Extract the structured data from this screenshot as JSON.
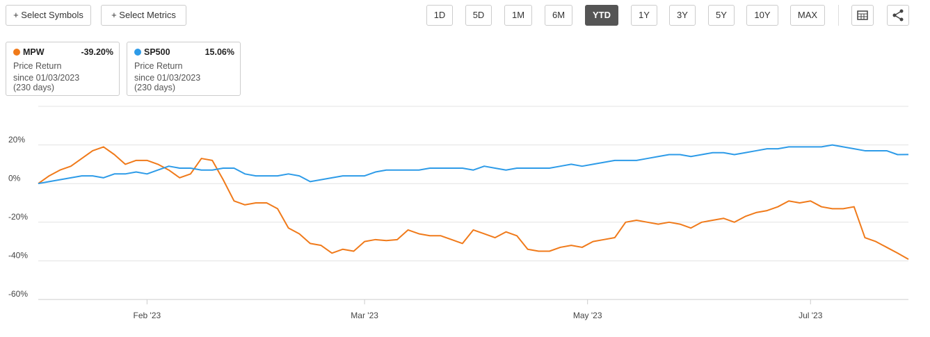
{
  "toolbar": {
    "select_symbols": "+ Select Symbols",
    "select_metrics": "+ Select Metrics",
    "ranges": [
      "1D",
      "5D",
      "1M",
      "6M",
      "YTD",
      "1Y",
      "3Y",
      "5Y",
      "10Y",
      "MAX"
    ],
    "active_range": "YTD"
  },
  "cards": [
    {
      "change": "-39.20%",
      "metric": "Price Return",
      "since": "since 01/03/2023",
      "days": "(230 days)"
    },
    {
      "change": "15.06%",
      "metric": "Price Return",
      "since": "since 01/03/2023",
      "days": "(230 days)"
    }
  ],
  "chart_data": {
    "type": "line",
    "x": [
      0,
      2,
      4,
      6,
      8,
      10,
      12,
      14,
      16,
      18,
      20,
      22,
      24,
      26,
      28,
      30,
      32,
      34,
      36,
      38,
      40,
      42,
      44,
      46,
      48,
      50,
      52,
      54,
      56,
      58,
      60,
      62,
      64,
      66,
      68,
      70,
      72,
      74,
      76,
      78,
      80,
      82,
      84,
      86,
      88,
      90,
      92,
      94,
      96,
      98,
      100,
      102,
      104,
      106,
      108,
      110,
      112,
      114,
      116,
      118,
      120,
      122,
      124,
      126,
      128,
      130,
      132,
      134,
      136,
      138,
      140,
      142,
      144,
      146,
      148,
      150,
      152,
      154,
      156,
      158,
      160
    ],
    "xlim": [
      0,
      160
    ],
    "xticks": [
      {
        "value": 20,
        "label": "Feb '23"
      },
      {
        "value": 60,
        "label": "Mar '23"
      },
      {
        "value": 101,
        "label": "May '23"
      },
      {
        "value": 142,
        "label": "Jul '23"
      }
    ],
    "ylim": [
      -60,
      40
    ],
    "yticks": [
      {
        "value": 20,
        "label": "20%"
      },
      {
        "value": 0,
        "label": "0%"
      },
      {
        "value": -20,
        "label": "-20%"
      },
      {
        "value": -40,
        "label": "-40%"
      },
      {
        "value": -60,
        "label": "-60%"
      }
    ],
    "grid": true,
    "series": [
      {
        "name": "MPW",
        "color": "#f07a1a",
        "values": [
          0,
          4,
          7,
          9,
          13,
          17,
          19,
          15,
          10,
          12,
          12,
          10,
          7,
          3,
          5,
          13,
          12,
          2,
          -9,
          -11,
          -10,
          -10,
          -13,
          -23,
          -26,
          -31,
          -32,
          -36,
          -34,
          -35,
          -30,
          -29,
          -29.5,
          -29,
          -24,
          -26,
          -27,
          -27,
          -29,
          -31,
          -24,
          -26,
          -28,
          -25,
          -27,
          -34,
          -35,
          -35,
          -33,
          -32,
          -33,
          -30,
          -29,
          -28,
          -20,
          -19,
          -20,
          -21,
          -20,
          -21,
          -23,
          -20,
          -19,
          -18,
          -20,
          -17,
          -15,
          -14,
          -12,
          -9,
          -10,
          -9,
          -12,
          -13,
          -13,
          -12,
          -28,
          -30,
          -33,
          -36,
          -39.2
        ]
      },
      {
        "name": "SP500",
        "color": "#2d9be8",
        "values": [
          0,
          1,
          2,
          3,
          4,
          4,
          3,
          5,
          5,
          6,
          5,
          7,
          9,
          8,
          8,
          7,
          7,
          8,
          8,
          5,
          4,
          4,
          4,
          5,
          4,
          1,
          2,
          3,
          4,
          4,
          4,
          6,
          7,
          7,
          7,
          7,
          8,
          8,
          8,
          8,
          7,
          9,
          8,
          7,
          8,
          8,
          8,
          8,
          9,
          10,
          9,
          10,
          11,
          12,
          12,
          12,
          13,
          14,
          15,
          15,
          14,
          15,
          16,
          16,
          15,
          16,
          17,
          18,
          18,
          19,
          19,
          19,
          19,
          20,
          19,
          18,
          17,
          17,
          17,
          15,
          15.06
        ]
      }
    ]
  }
}
